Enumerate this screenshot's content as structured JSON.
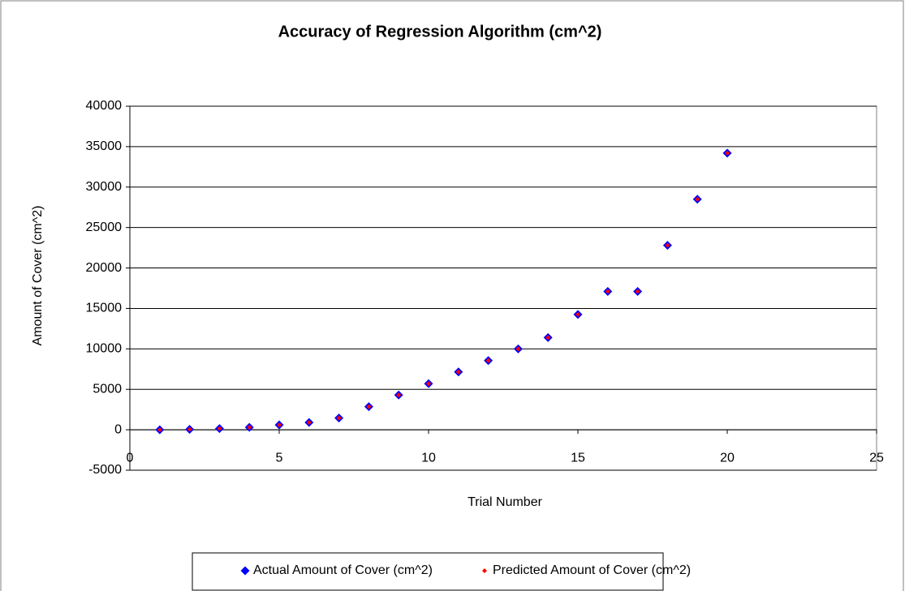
{
  "chart_data": {
    "type": "scatter",
    "title": "Accuracy of Regression Algorithm (cm^2)",
    "x_label": "Trial Number",
    "y_label": "Amount of Cover (cm^2)",
    "x": [
      1,
      2,
      3,
      4,
      5,
      6,
      7,
      8,
      9,
      10,
      11,
      12,
      13,
      14,
      15,
      16,
      17,
      18,
      19,
      20
    ],
    "series": [
      {
        "name": "Actual Amount of Cover (cm^2)",
        "color": "#0000ff",
        "values": [
          0,
          50,
          150,
          300,
          600,
          900,
          1450,
          2850,
          4300,
          5700,
          7150,
          8550,
          10000,
          11400,
          14250,
          17100,
          17100,
          22800,
          28500,
          34200
        ]
      },
      {
        "name": "Predicted Amount of Cover (cm^2)",
        "color": "#ff0000",
        "values": [
          0,
          50,
          150,
          300,
          600,
          900,
          1450,
          2850,
          4300,
          5700,
          7150,
          8550,
          10000,
          11400,
          14250,
          17100,
          17100,
          22800,
          28500,
          34200
        ]
      }
    ],
    "xlim": [
      0,
      25
    ],
    "xticks": [
      0,
      5,
      10,
      15,
      20,
      25
    ],
    "ylim": [
      -5000,
      40000
    ],
    "yticks": [
      -5000,
      0,
      5000,
      10000,
      15000,
      20000,
      25000,
      30000,
      35000,
      40000
    ],
    "grid": true,
    "legend": "bottom"
  }
}
